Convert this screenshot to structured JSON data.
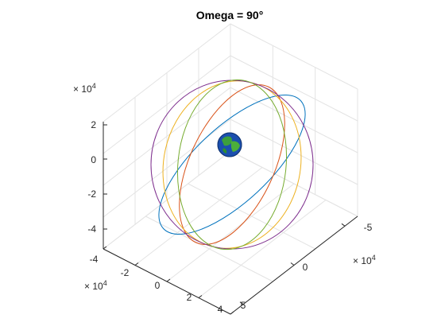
{
  "chart_data": {
    "type": "line",
    "title": "Omega = 90°",
    "axes": {
      "x": {
        "exponent_label": "× 10^4",
        "ticks": [
          "-4",
          "-2",
          "0",
          "2",
          "4"
        ]
      },
      "y": {
        "exponent_label": "× 10^4",
        "ticks": [
          "-5",
          "0",
          "5"
        ]
      },
      "z": {
        "exponent_label": "× 10^4",
        "ticks": [
          "2",
          "0",
          "-2",
          "-4"
        ]
      }
    },
    "grid": true,
    "center_body": "earth-globe",
    "series": [
      {
        "color": "#0072BD",
        "orbit": "inclined-ellipse-1"
      },
      {
        "color": "#D95319",
        "orbit": "inclined-ellipse-2"
      },
      {
        "color": "#EDB120",
        "orbit": "inclined-ellipse-3"
      },
      {
        "color": "#7E2F8E",
        "orbit": "outer-circle"
      },
      {
        "color": "#77AC30",
        "orbit": "inclined-ellipse-4"
      }
    ]
  }
}
